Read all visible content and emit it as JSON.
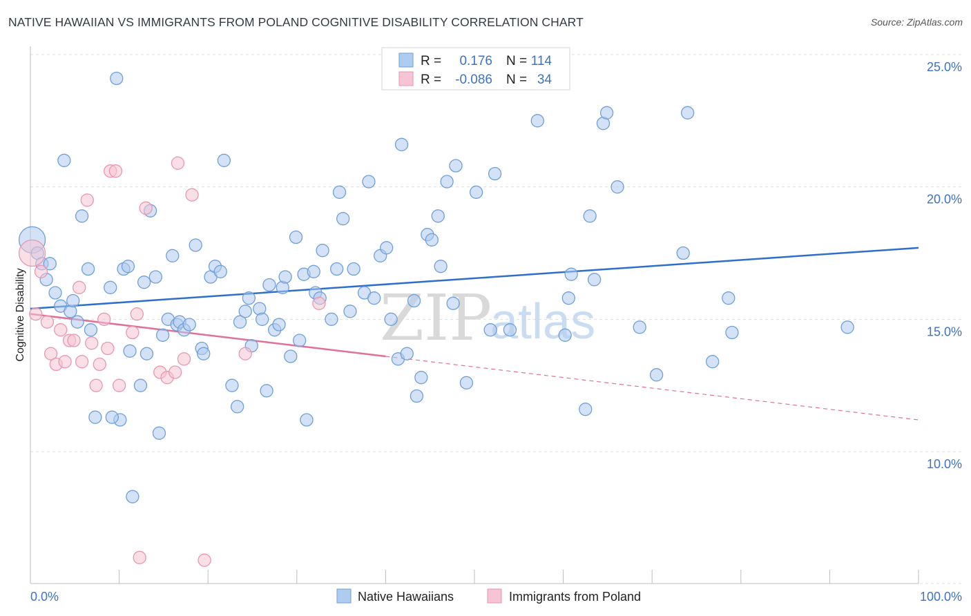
{
  "title": "NATIVE HAWAIIAN VS IMMIGRANTS FROM POLAND COGNITIVE DISABILITY CORRELATION CHART",
  "source": "Source: ZipAtlas.com",
  "watermark": {
    "zip": "ZIP",
    "atlas": "atlas"
  },
  "colors": {
    "blue_fill": "#aecbf0",
    "blue_stroke": "#6f9fd8",
    "blue_line": "#2e6fcc",
    "pink_fill": "#f6c4d4",
    "pink_stroke": "#e896b2",
    "pink_line": "#e0709a",
    "axis_text": "#3d72c4",
    "grid": "#dcdcdc"
  },
  "stats": {
    "r_label": "R =",
    "n_label": "N =",
    "rows": [
      {
        "r": "0.176",
        "n": "114"
      },
      {
        "r": "-0.086",
        "n": "34"
      }
    ]
  },
  "chart_data": {
    "type": "scatter",
    "title": "NATIVE HAWAIIAN VS IMMIGRANTS FROM POLAND COGNITIVE DISABILITY CORRELATION CHART",
    "xlabel": "",
    "ylabel": "Cognitive Disability",
    "xlim": [
      0,
      100
    ],
    "ylim": [
      5.0,
      26.5
    ],
    "x_tick_labels": [
      "0.0%",
      "100.0%"
    ],
    "y_ticks": [
      10,
      15,
      20,
      25
    ],
    "y_tick_labels": [
      "10.0%",
      "15.0%",
      "20.0%",
      "25.0%"
    ],
    "grid": true,
    "legend_position": "bottom-center",
    "series": [
      {
        "name": "Native Hawaiians",
        "r": 0.176,
        "n": 114,
        "trend": {
          "x": [
            0,
            100
          ],
          "y": [
            15.4,
            17.7
          ]
        },
        "points": [
          {
            "x": 0.2,
            "y": 18.0,
            "big": true
          },
          {
            "x": 0.8,
            "y": 17.5
          },
          {
            "x": 1.3,
            "y": 17.1
          },
          {
            "x": 2.2,
            "y": 17.1
          },
          {
            "x": 1.8,
            "y": 16.5
          },
          {
            "x": 2.8,
            "y": 16.0
          },
          {
            "x": 3.4,
            "y": 15.5
          },
          {
            "x": 4.5,
            "y": 15.3
          },
          {
            "x": 4.8,
            "y": 15.7
          },
          {
            "x": 5.3,
            "y": 14.9
          },
          {
            "x": 6.8,
            "y": 14.6
          },
          {
            "x": 3.8,
            "y": 21.0
          },
          {
            "x": 5.8,
            "y": 18.9
          },
          {
            "x": 6.5,
            "y": 16.9
          },
          {
            "x": 9.0,
            "y": 16.2
          },
          {
            "x": 9.7,
            "y": 24.1
          },
          {
            "x": 10.5,
            "y": 16.9
          },
          {
            "x": 11.0,
            "y": 17.0
          },
          {
            "x": 11.2,
            "y": 13.8
          },
          {
            "x": 12.4,
            "y": 12.5
          },
          {
            "x": 12.8,
            "y": 16.4
          },
          {
            "x": 13.1,
            "y": 13.7
          },
          {
            "x": 13.5,
            "y": 19.1
          },
          {
            "x": 14.1,
            "y": 16.6
          },
          {
            "x": 14.5,
            "y": 10.7
          },
          {
            "x": 14.9,
            "y": 14.4
          },
          {
            "x": 15.5,
            "y": 15.0
          },
          {
            "x": 16.0,
            "y": 17.4
          },
          {
            "x": 16.5,
            "y": 14.8
          },
          {
            "x": 16.8,
            "y": 14.9
          },
          {
            "x": 17.3,
            "y": 14.6
          },
          {
            "x": 17.9,
            "y": 14.8
          },
          {
            "x": 18.6,
            "y": 17.8
          },
          {
            "x": 19.3,
            "y": 13.9
          },
          {
            "x": 19.5,
            "y": 13.7
          },
          {
            "x": 20.3,
            "y": 16.6
          },
          {
            "x": 20.8,
            "y": 17.0
          },
          {
            "x": 21.4,
            "y": 16.8
          },
          {
            "x": 21.8,
            "y": 21.0
          },
          {
            "x": 10.1,
            "y": 11.2
          },
          {
            "x": 9.2,
            "y": 11.3
          },
          {
            "x": 7.3,
            "y": 11.3
          },
          {
            "x": 11.5,
            "y": 8.3
          },
          {
            "x": 22.7,
            "y": 12.5
          },
          {
            "x": 23.3,
            "y": 11.7
          },
          {
            "x": 23.6,
            "y": 14.9
          },
          {
            "x": 24.2,
            "y": 15.3
          },
          {
            "x": 24.6,
            "y": 15.8
          },
          {
            "x": 24.9,
            "y": 14.0
          },
          {
            "x": 25.8,
            "y": 15.4
          },
          {
            "x": 26.1,
            "y": 15.0
          },
          {
            "x": 26.6,
            "y": 12.3
          },
          {
            "x": 26.9,
            "y": 16.3
          },
          {
            "x": 27.5,
            "y": 14.6
          },
          {
            "x": 28.0,
            "y": 14.8
          },
          {
            "x": 28.4,
            "y": 16.2
          },
          {
            "x": 28.7,
            "y": 16.6
          },
          {
            "x": 29.3,
            "y": 13.6
          },
          {
            "x": 29.9,
            "y": 18.1
          },
          {
            "x": 30.3,
            "y": 14.2
          },
          {
            "x": 30.8,
            "y": 16.7
          },
          {
            "x": 31.1,
            "y": 11.2
          },
          {
            "x": 31.9,
            "y": 16.8
          },
          {
            "x": 32.1,
            "y": 16.0
          },
          {
            "x": 32.6,
            "y": 15.8
          },
          {
            "x": 32.9,
            "y": 17.6
          },
          {
            "x": 33.9,
            "y": 15.0
          },
          {
            "x": 34.5,
            "y": 16.9
          },
          {
            "x": 34.8,
            "y": 19.8
          },
          {
            "x": 35.2,
            "y": 18.8
          },
          {
            "x": 36.0,
            "y": 15.3
          },
          {
            "x": 36.4,
            "y": 16.9
          },
          {
            "x": 37.6,
            "y": 16.0
          },
          {
            "x": 38.1,
            "y": 20.2
          },
          {
            "x": 38.7,
            "y": 15.8
          },
          {
            "x": 39.4,
            "y": 17.4
          },
          {
            "x": 40.1,
            "y": 17.7
          },
          {
            "x": 40.6,
            "y": 15.0
          },
          {
            "x": 41.4,
            "y": 13.5
          },
          {
            "x": 41.8,
            "y": 21.6
          },
          {
            "x": 42.4,
            "y": 13.7
          },
          {
            "x": 43.2,
            "y": 15.7
          },
          {
            "x": 43.5,
            "y": 12.1
          },
          {
            "x": 44.0,
            "y": 12.8
          },
          {
            "x": 44.7,
            "y": 18.2
          },
          {
            "x": 45.2,
            "y": 18.0
          },
          {
            "x": 45.9,
            "y": 18.9
          },
          {
            "x": 46.2,
            "y": 17.0
          },
          {
            "x": 46.9,
            "y": 20.2
          },
          {
            "x": 47.6,
            "y": 15.6
          },
          {
            "x": 47.9,
            "y": 20.8
          },
          {
            "x": 49.1,
            "y": 12.6
          },
          {
            "x": 50.2,
            "y": 19.8
          },
          {
            "x": 51.8,
            "y": 14.6
          },
          {
            "x": 52.3,
            "y": 20.5
          },
          {
            "x": 54.0,
            "y": 14.6
          },
          {
            "x": 57.1,
            "y": 22.5
          },
          {
            "x": 60.2,
            "y": 14.4
          },
          {
            "x": 60.6,
            "y": 15.8
          },
          {
            "x": 60.9,
            "y": 16.7
          },
          {
            "x": 62.5,
            "y": 11.6
          },
          {
            "x": 63.0,
            "y": 18.9
          },
          {
            "x": 63.5,
            "y": 16.5
          },
          {
            "x": 64.5,
            "y": 22.4
          },
          {
            "x": 64.9,
            "y": 22.8
          },
          {
            "x": 66.1,
            "y": 20.0
          },
          {
            "x": 68.6,
            "y": 14.7
          },
          {
            "x": 70.5,
            "y": 12.9
          },
          {
            "x": 73.5,
            "y": 17.5
          },
          {
            "x": 74.0,
            "y": 22.8
          },
          {
            "x": 76.8,
            "y": 13.4
          },
          {
            "x": 78.6,
            "y": 15.8
          },
          {
            "x": 79.0,
            "y": 14.5
          },
          {
            "x": 92.0,
            "y": 14.7
          }
        ]
      },
      {
        "name": "Immigrants from Poland",
        "r": -0.086,
        "n": 34,
        "trend": {
          "x": [
            0,
            40
          ],
          "y": [
            15.2,
            13.6
          ]
        },
        "trend_extension": {
          "x": [
            40,
            100
          ],
          "y": [
            13.6,
            11.2
          ]
        },
        "points": [
          {
            "x": 0.2,
            "y": 17.5,
            "big": true
          },
          {
            "x": 0.6,
            "y": 15.2
          },
          {
            "x": 1.2,
            "y": 16.8
          },
          {
            "x": 1.9,
            "y": 14.9
          },
          {
            "x": 2.3,
            "y": 13.7
          },
          {
            "x": 2.9,
            "y": 13.3
          },
          {
            "x": 3.4,
            "y": 14.6
          },
          {
            "x": 3.9,
            "y": 13.4
          },
          {
            "x": 4.4,
            "y": 14.2
          },
          {
            "x": 4.9,
            "y": 14.2
          },
          {
            "x": 5.5,
            "y": 16.2
          },
          {
            "x": 5.8,
            "y": 13.4
          },
          {
            "x": 6.4,
            "y": 19.5
          },
          {
            "x": 6.9,
            "y": 14.1
          },
          {
            "x": 7.4,
            "y": 12.5
          },
          {
            "x": 7.8,
            "y": 13.3
          },
          {
            "x": 8.3,
            "y": 15.0
          },
          {
            "x": 8.7,
            "y": 13.9
          },
          {
            "x": 9.0,
            "y": 20.6
          },
          {
            "x": 9.6,
            "y": 20.6
          },
          {
            "x": 10.0,
            "y": 12.5
          },
          {
            "x": 11.5,
            "y": 14.5
          },
          {
            "x": 12.0,
            "y": 15.2
          },
          {
            "x": 12.3,
            "y": 6.0
          },
          {
            "x": 13.0,
            "y": 19.2
          },
          {
            "x": 14.6,
            "y": 13.0
          },
          {
            "x": 15.4,
            "y": 12.8
          },
          {
            "x": 16.3,
            "y": 13.0
          },
          {
            "x": 16.6,
            "y": 20.9
          },
          {
            "x": 17.3,
            "y": 13.5
          },
          {
            "x": 18.2,
            "y": 19.7
          },
          {
            "x": 19.6,
            "y": 5.9
          },
          {
            "x": 24.2,
            "y": 13.7
          },
          {
            "x": 32.5,
            "y": 15.6
          }
        ]
      }
    ]
  },
  "legend": {
    "items": [
      {
        "label": "Native Hawaiians"
      },
      {
        "label": "Immigrants from Poland"
      }
    ]
  }
}
